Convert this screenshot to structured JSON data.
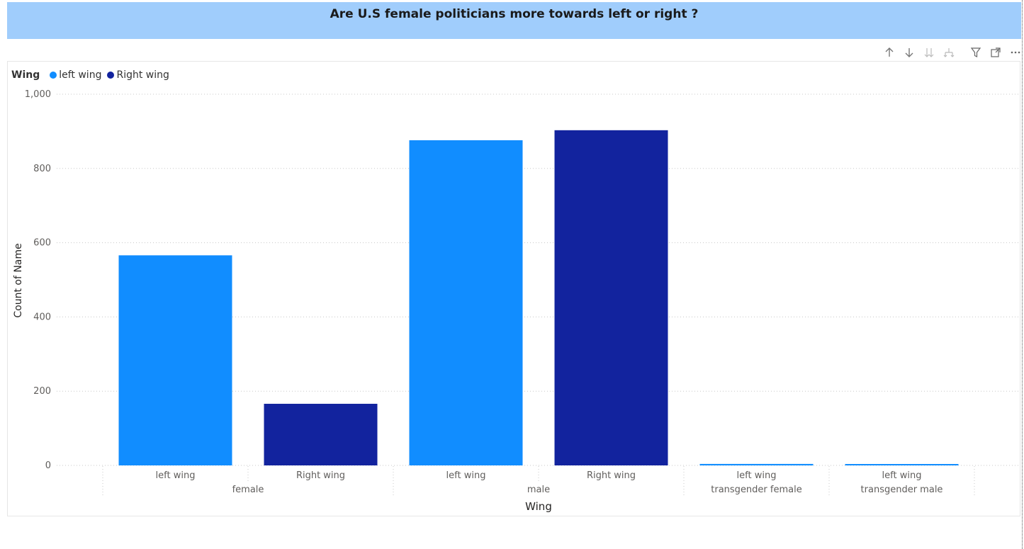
{
  "title": "Are U.S female politicians more towards left or right ?",
  "toolbar": {
    "icons": [
      "arrow-up-icon",
      "arrow-down-icon",
      "double-arrow-down-icon",
      "expand-hierarchy-icon",
      "filter-icon",
      "focus-mode-icon",
      "more-options-icon"
    ]
  },
  "legend": {
    "title": "Wing",
    "items": [
      {
        "label": "left wing",
        "color": "#118dff"
      },
      {
        "label": "Right wing",
        "color": "#12239e"
      }
    ]
  },
  "chart_data": {
    "type": "bar",
    "xlabel": "Wing",
    "ylabel": "Count of Name",
    "ylim": [
      0,
      1000
    ],
    "yticks": [
      0,
      200,
      400,
      600,
      800,
      1000
    ],
    "ytick_labels": [
      "0",
      "200",
      "400",
      "600",
      "800",
      "1,000"
    ],
    "grid": true,
    "legend_position": "top-left",
    "groups": [
      {
        "name": "female",
        "bars": [
          {
            "category": "left wing",
            "value": 566,
            "color": "#118dff"
          },
          {
            "category": "Right wing",
            "value": 166,
            "color": "#12239e"
          }
        ]
      },
      {
        "name": "male",
        "bars": [
          {
            "category": "left wing",
            "value": 876,
            "color": "#118dff"
          },
          {
            "category": "Right wing",
            "value": 903,
            "color": "#12239e"
          }
        ]
      },
      {
        "name": "transgender female",
        "bars": [
          {
            "category": "left wing",
            "value": 4,
            "color": "#118dff"
          }
        ]
      },
      {
        "name": "transgender male",
        "bars": [
          {
            "category": "left wing",
            "value": 1,
            "color": "#118dff"
          }
        ]
      }
    ]
  }
}
